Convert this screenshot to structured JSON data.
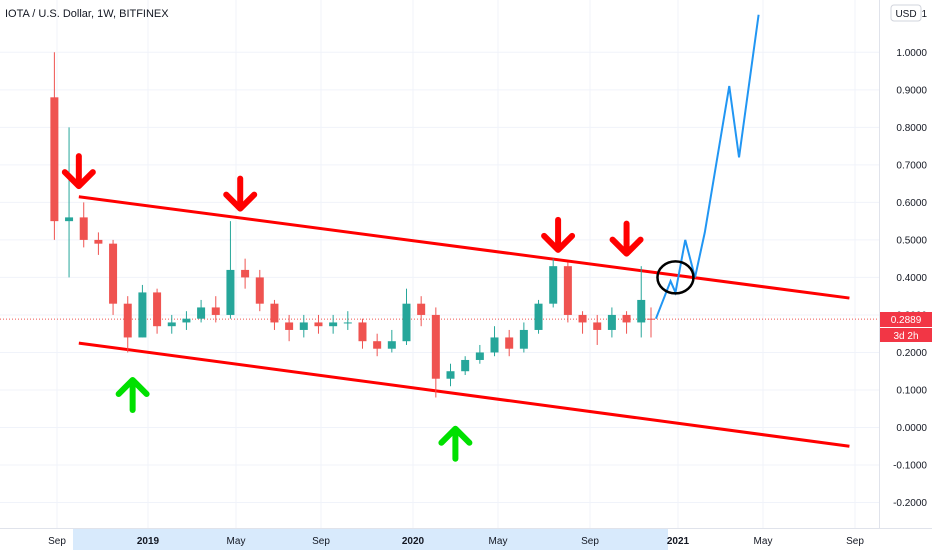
{
  "header": {
    "symbol_title": "IOTA / U.S. Dollar, 1W, BITFINEX",
    "currency": "USD"
  },
  "price_axis": {
    "ticks": [
      "1",
      "1.0000",
      "0.9000",
      "0.8000",
      "0.7000",
      "0.6000",
      "0.5000",
      "0.4000",
      "0.3000",
      "0.2000",
      "0.1000",
      "0.0000",
      "-0.1000",
      "-0.2000"
    ]
  },
  "last_price": {
    "value": "0.2889",
    "countdown": "3d 2h",
    "color": "#f23645"
  },
  "time_axis": {
    "labels": [
      {
        "text": "Sep",
        "year": false
      },
      {
        "text": "2019",
        "year": true
      },
      {
        "text": "May",
        "year": false
      },
      {
        "text": "Sep",
        "year": false
      },
      {
        "text": "2020",
        "year": true
      },
      {
        "text": "May",
        "year": false
      },
      {
        "text": "Sep",
        "year": false
      },
      {
        "text": "2021",
        "year": true
      },
      {
        "text": "May",
        "year": false
      },
      {
        "text": "Sep",
        "year": false
      }
    ]
  },
  "colors": {
    "up": "#26a69a",
    "down": "#ef5350",
    "channel": "#ff0000",
    "arrow_down": "#ff0000",
    "arrow_up": "#00e000",
    "projection": "#2196f3",
    "grid": "#f0f3fa"
  },
  "chart_data": {
    "type": "candlestick",
    "title": "IOTA / U.S. Dollar, 1W, BITFINEX",
    "y_unit": "USD",
    "ylim": [
      -0.25,
      1.05
    ],
    "grid": true,
    "x": [
      "2018-08-20",
      "2018-09-10",
      "2018-10-01",
      "2018-10-22",
      "2018-11-12",
      "2018-12-03",
      "2018-12-24",
      "2019-01-14",
      "2019-02-04",
      "2019-02-25",
      "2019-03-18",
      "2019-04-08",
      "2019-04-29",
      "2019-05-20",
      "2019-06-10",
      "2019-07-01",
      "2019-07-22",
      "2019-08-12",
      "2019-09-02",
      "2019-09-23",
      "2019-10-14",
      "2019-11-04",
      "2019-11-25",
      "2019-12-16",
      "2020-01-06",
      "2020-01-27",
      "2020-02-17",
      "2020-03-09",
      "2020-03-30",
      "2020-04-20",
      "2020-05-11",
      "2020-06-01",
      "2020-06-22",
      "2020-07-13",
      "2020-08-03",
      "2020-08-24",
      "2020-09-14",
      "2020-10-05",
      "2020-10-26",
      "2020-11-16",
      "2020-12-07",
      "2020-12-21"
    ],
    "series": [
      {
        "type": "candlestick",
        "open": [
          0.88,
          0.55,
          0.56,
          0.5,
          0.49,
          0.33,
          0.24,
          0.36,
          0.27,
          0.28,
          0.29,
          0.32,
          0.3,
          0.42,
          0.4,
          0.33,
          0.28,
          0.26,
          0.28,
          0.27,
          0.28,
          0.28,
          0.23,
          0.21,
          0.23,
          0.33,
          0.3,
          0.13,
          0.15,
          0.18,
          0.2,
          0.24,
          0.21,
          0.26,
          0.33,
          0.43,
          0.3,
          0.28,
          0.26,
          0.3,
          0.28,
          0.29
        ],
        "close": [
          0.55,
          0.56,
          0.5,
          0.49,
          0.33,
          0.24,
          0.36,
          0.27,
          0.28,
          0.29,
          0.32,
          0.3,
          0.42,
          0.4,
          0.33,
          0.28,
          0.26,
          0.28,
          0.27,
          0.28,
          0.28,
          0.23,
          0.21,
          0.23,
          0.33,
          0.3,
          0.13,
          0.15,
          0.18,
          0.2,
          0.24,
          0.21,
          0.26,
          0.33,
          0.43,
          0.3,
          0.28,
          0.26,
          0.3,
          0.28,
          0.34,
          0.2889
        ],
        "high": [
          1.0,
          0.8,
          0.6,
          0.52,
          0.5,
          0.35,
          0.38,
          0.37,
          0.3,
          0.31,
          0.34,
          0.35,
          0.55,
          0.45,
          0.42,
          0.34,
          0.3,
          0.3,
          0.3,
          0.3,
          0.31,
          0.29,
          0.25,
          0.26,
          0.37,
          0.35,
          0.32,
          0.17,
          0.19,
          0.22,
          0.27,
          0.26,
          0.28,
          0.34,
          0.45,
          0.44,
          0.31,
          0.3,
          0.32,
          0.31,
          0.43,
          0.32
        ],
        "low": [
          0.5,
          0.4,
          0.48,
          0.46,
          0.3,
          0.2,
          0.24,
          0.25,
          0.25,
          0.26,
          0.28,
          0.28,
          0.29,
          0.37,
          0.31,
          0.26,
          0.23,
          0.24,
          0.25,
          0.25,
          0.26,
          0.21,
          0.19,
          0.2,
          0.22,
          0.27,
          0.08,
          0.11,
          0.14,
          0.17,
          0.19,
          0.19,
          0.2,
          0.25,
          0.32,
          0.28,
          0.25,
          0.22,
          0.24,
          0.25,
          0.24,
          0.24
        ]
      }
    ],
    "channel_upper": {
      "x": [
        "2018-09-24",
        "2021-10-01"
      ],
      "y": [
        0.615,
        0.345
      ]
    },
    "channel_lower": {
      "x": [
        "2018-09-24",
        "2021-10-01"
      ],
      "y": [
        0.225,
        -0.05
      ]
    },
    "projection": {
      "x": [
        "2020-12-28",
        "2021-01-18",
        "2021-01-25",
        "2021-02-08",
        "2021-02-22",
        "2021-03-08",
        "2021-04-12",
        "2021-04-26",
        "2021-05-24"
      ],
      "y": [
        0.29,
        0.39,
        0.36,
        0.5,
        0.4,
        0.52,
        0.91,
        0.72,
        1.1
      ]
    },
    "annotations": [
      {
        "type": "arrow-down",
        "x": "2018-09-24",
        "y": 0.67
      },
      {
        "type": "arrow-down",
        "x": "2019-05-13",
        "y": 0.61
      },
      {
        "type": "arrow-down",
        "x": "2020-08-10",
        "y": 0.5
      },
      {
        "type": "arrow-down",
        "x": "2020-11-16",
        "y": 0.49
      },
      {
        "type": "arrow-up",
        "x": "2018-12-10",
        "y": 0.1
      },
      {
        "type": "arrow-up",
        "x": "2020-03-16",
        "y": -0.03
      },
      {
        "type": "circle",
        "x": "2021-01-25",
        "y": 0.4
      }
    ]
  }
}
